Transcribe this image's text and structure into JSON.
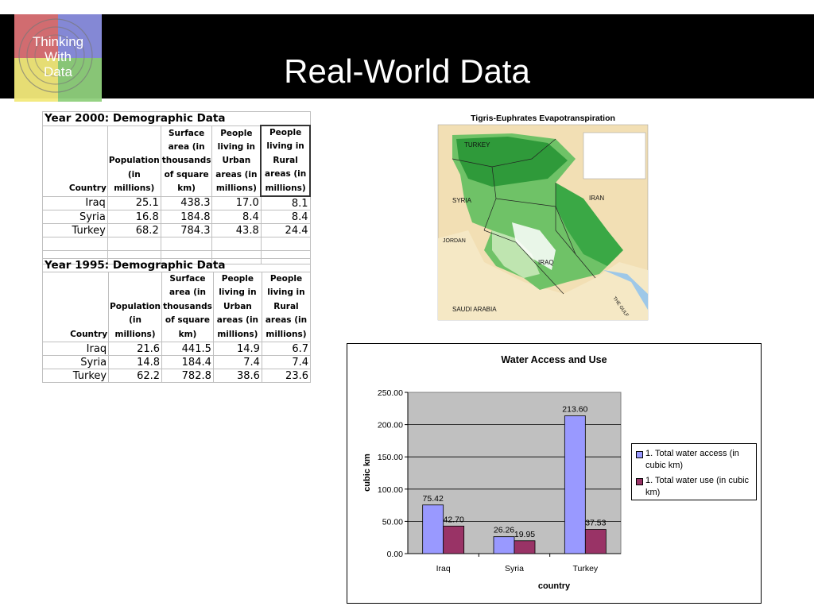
{
  "header": {
    "title": "Real-World Data",
    "logo_text": [
      "Thinking",
      "With",
      "Data"
    ]
  },
  "table_2000": {
    "title": "Year 2000: Demographic Data",
    "columns": [
      "Country",
      "Population (in millions)",
      "Surface area (in thousands of square km)",
      "People living in Urban areas (in millions)",
      "People living in Rural areas (in millions)"
    ],
    "rows": [
      [
        "Iraq",
        "25.1",
        "438.3",
        "17.0",
        "8.1"
      ],
      [
        "Syria",
        "16.8",
        "184.8",
        "8.4",
        "8.4"
      ],
      [
        "Turkey",
        "68.2",
        "784.3",
        "43.8",
        "24.4"
      ]
    ]
  },
  "table_1995": {
    "title": "Year 1995: Demographic Data",
    "columns": [
      "Country",
      "Population (in millions)",
      "Surface area (in thousands of square km)",
      "People living in Urban areas (in millions)",
      "People living in Rural areas (in millions)"
    ],
    "rows": [
      [
        "Iraq",
        "21.6",
        "441.5",
        "14.9",
        "6.7"
      ],
      [
        "Syria",
        "14.8",
        "184.4",
        "7.4",
        "7.4"
      ],
      [
        "Turkey",
        "62.2",
        "782.8",
        "38.6",
        "23.6"
      ]
    ]
  },
  "map": {
    "title": "Tigris-Euphrates Evapotranspiration",
    "labels": [
      "TURKEY",
      "SYRIA",
      "IRAN",
      "IRAQ",
      "JORDAN",
      "SAUDI ARABIA",
      "THE GULF"
    ]
  },
  "chart_data": {
    "type": "bar",
    "title": "Water Access and Use",
    "xlabel": "country",
    "ylabel": "cubic km",
    "categories": [
      "Iraq",
      "Syria",
      "Turkey"
    ],
    "series": [
      {
        "name": "1. Total water access (in cubic km)",
        "values": [
          75.42,
          26.26,
          213.6
        ],
        "labels": [
          "75.42",
          "26.26",
          "213.60"
        ],
        "color": "#9999ff"
      },
      {
        "name": "1. Total water use (in cubic km)",
        "values": [
          42.7,
          19.95,
          37.53
        ],
        "labels": [
          "42.70",
          "19.95",
          "37.53"
        ],
        "color": "#993366"
      }
    ],
    "ylim": [
      0,
      250
    ],
    "yticks": [
      "0.00",
      "50.00",
      "100.00",
      "150.00",
      "200.00",
      "250.00"
    ],
    "grid": true,
    "plot_background": "#c0c0c0",
    "legend_position": "right"
  }
}
